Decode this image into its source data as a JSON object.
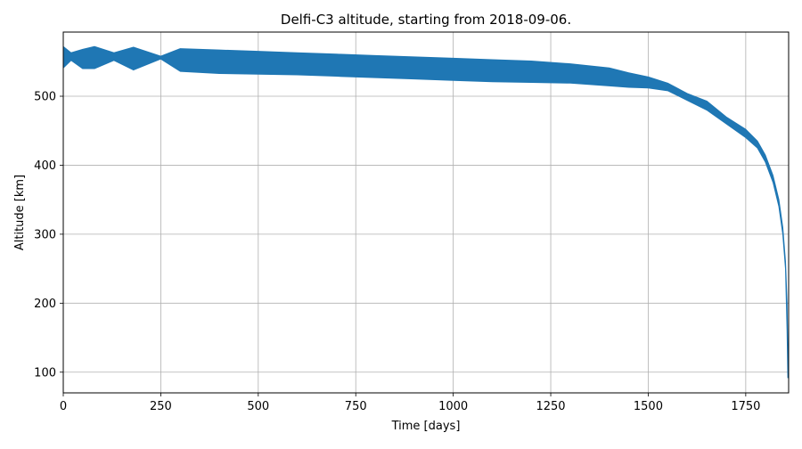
{
  "chart_data": {
    "type": "area",
    "title": "Delfi-C3 altitude, starting from 2018-09-06.",
    "xlabel": "Time [days]",
    "ylabel": "Altitude [km]",
    "xlim": [
      0,
      1860
    ],
    "ylim": [
      70,
      593
    ],
    "grid": true,
    "xticks": [
      0,
      250,
      500,
      750,
      1000,
      1250,
      1500,
      1750
    ],
    "yticks": [
      100,
      200,
      300,
      400,
      500
    ],
    "series": [
      {
        "color": "#1f77b4",
        "x": [
          0,
          20,
          50,
          80,
          130,
          180,
          250,
          300,
          400,
          500,
          600,
          700,
          800,
          900,
          1000,
          1100,
          1200,
          1300,
          1400,
          1450,
          1500,
          1550,
          1600,
          1650,
          1700,
          1750,
          1780,
          1800,
          1820,
          1835,
          1845,
          1852,
          1856,
          1858
        ],
        "upper": [
          572,
          563,
          568,
          572,
          563,
          571,
          558,
          569,
          567,
          565,
          563,
          561,
          559,
          557,
          555,
          553,
          551,
          547,
          541,
          534,
          528,
          519,
          504,
          493,
          470,
          452,
          435,
          415,
          385,
          350,
          310,
          260,
          200,
          130
        ],
        "lower": [
          541,
          552,
          540,
          540,
          552,
          538,
          554,
          536,
          533,
          532,
          531,
          529,
          527,
          525,
          523,
          521,
          520,
          519,
          515,
          513,
          512,
          508,
          494,
          480,
          460,
          440,
          425,
          405,
          375,
          340,
          300,
          250,
          160,
          92
        ]
      }
    ]
  }
}
